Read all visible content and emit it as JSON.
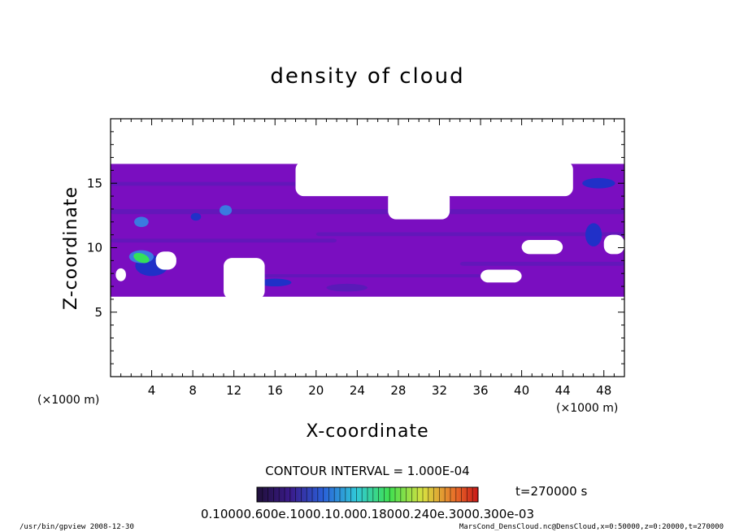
{
  "chart_data": {
    "type": "heatmap",
    "title": "density of cloud",
    "xlabel": "X-coordinate",
    "ylabel": "Z-coordinate",
    "x_unit": "(×1000 m)",
    "z_unit": "(×1000 m)",
    "xlim": [
      0,
      50
    ],
    "ylim": [
      0,
      20
    ],
    "x_ticks": [
      4,
      8,
      12,
      16,
      20,
      24,
      28,
      32,
      36,
      40,
      44,
      48
    ],
    "y_ticks": [
      5,
      10,
      15
    ],
    "contour_interval": "CONTOUR INTERVAL = 1.000E-04",
    "time": "t=270000 s",
    "colorbar_labels": "0.10000.600e.1000.10.000.18000.240e.3000.300e-03",
    "colorbar_levels": [
      0.0001,
      0.0006,
      0.0012,
      0.0018,
      0.0024,
      0.003
    ],
    "colors": {
      "background_fill": "#7a0ec0",
      "band": "#5a1ab8",
      "core_dark": "#2030c8",
      "core_light": "#3a7ae0",
      "highlight": "#34e05a"
    },
    "cloud_extent": {
      "x": [
        0,
        50
      ],
      "z": [
        6.2,
        16.5
      ]
    },
    "clear_regions": [
      {
        "x": [
          0.5,
          1.5
        ],
        "z": [
          7.4,
          8.4
        ]
      },
      {
        "x": [
          4.4,
          6.4
        ],
        "z": [
          8.3,
          9.7
        ]
      },
      {
        "x": [
          11.0,
          15.0
        ],
        "z": [
          6.0,
          9.2
        ]
      },
      {
        "x": [
          18.0,
          45.0
        ],
        "z": [
          14.0,
          16.7
        ]
      },
      {
        "x": [
          27.0,
          33.0
        ],
        "z": [
          12.2,
          14.5
        ]
      },
      {
        "x": [
          40.0,
          44.0
        ],
        "z": [
          9.5,
          10.6
        ]
      },
      {
        "x": [
          48.0,
          50.0
        ],
        "z": [
          9.5,
          11.0
        ]
      },
      {
        "x": [
          36.0,
          40.0
        ],
        "z": [
          7.3,
          8.3
        ]
      }
    ],
    "dense_features": [
      {
        "x": 3,
        "z": 12.0,
        "rx": 0.7,
        "rz": 0.4,
        "level": "core_light"
      },
      {
        "x": 11.2,
        "z": 12.9,
        "rx": 0.6,
        "rz": 0.4,
        "level": "core_light"
      },
      {
        "x": 8.3,
        "z": 12.4,
        "rx": 0.5,
        "rz": 0.3,
        "level": "core_dark"
      },
      {
        "x": 47.5,
        "z": 15.0,
        "rx": 1.6,
        "rz": 0.4,
        "level": "core_dark"
      },
      {
        "x": 47.0,
        "z": 11.0,
        "rx": 0.8,
        "rz": 0.9,
        "level": "core_dark"
      },
      {
        "x": 16.0,
        "z": 7.3,
        "rx": 1.6,
        "rz": 0.3,
        "level": "core_dark"
      },
      {
        "x": 23.0,
        "z": 6.9,
        "rx": 2.0,
        "rz": 0.3,
        "level": "band"
      },
      {
        "x": 4.0,
        "z": 8.6,
        "rx": 1.6,
        "rz": 0.8,
        "level": "core_dark"
      },
      {
        "x": 3.0,
        "z": 9.3,
        "rx": 1.2,
        "rz": 0.5,
        "level": "core_light"
      },
      {
        "x": 3.0,
        "z": 9.2,
        "rx": 0.8,
        "rz": 0.35,
        "level": "highlight"
      }
    ]
  },
  "footer": {
    "program": "/usr/bin/gpview   2008-12-30",
    "source": "MarsCond_DensCloud.nc@DensCloud,x=0:50000,z=0:20000,t=270000"
  }
}
